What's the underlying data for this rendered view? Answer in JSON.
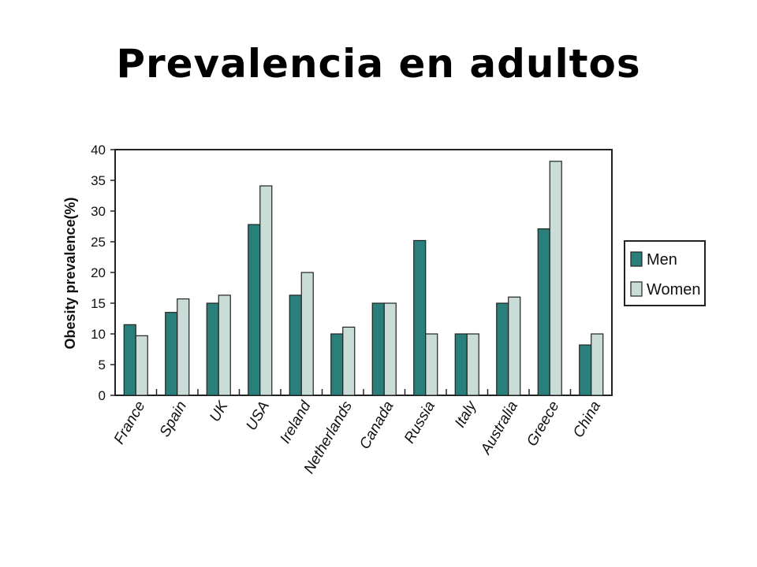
{
  "slide": {
    "title": "Prevalencia en adultos"
  },
  "chart_data": {
    "type": "bar",
    "title": "",
    "xlabel": "",
    "ylabel": "Obesity prevalence(%)",
    "ylim": [
      0,
      40
    ],
    "yticks": [
      "0",
      "5",
      "10",
      "15",
      "20",
      "25",
      "30",
      "35",
      "40"
    ],
    "grid": false,
    "legend_position": "right",
    "categories": [
      "France",
      "Spain",
      "UK",
      "USA",
      "Ireland",
      "Netherlands",
      "Canada",
      "Russia",
      "Italy",
      "Australia",
      "Greece",
      "China"
    ],
    "series": [
      {
        "name": "Men",
        "color": "#2a7f7a",
        "values": [
          11.5,
          13.5,
          15,
          27.8,
          16.3,
          10,
          15,
          25.2,
          10,
          15,
          27.1,
          8.2
        ]
      },
      {
        "name": "Women",
        "color": "#c9dcd7",
        "values": [
          9.7,
          15.7,
          16.3,
          34.1,
          20,
          11.1,
          15,
          10,
          10,
          16,
          38.1,
          10
        ]
      }
    ]
  }
}
